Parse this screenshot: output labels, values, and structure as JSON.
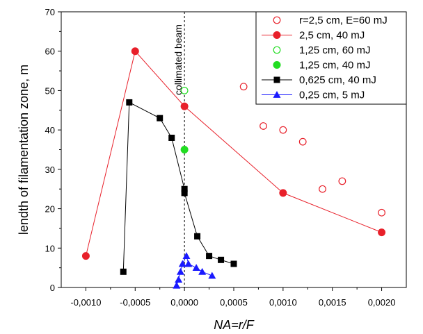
{
  "chart_data": {
    "type": "scatter",
    "xlabel": "NA=r/F",
    "ylabel": "lendth of filamentation zone, m",
    "xlim": [
      -0.00125,
      0.00225
    ],
    "ylim": [
      0,
      70
    ],
    "x_ticks": [
      -0.001,
      -0.0005,
      0,
      0.0005,
      0.001,
      0.0015,
      0.002
    ],
    "x_tick_labels": [
      "-0,0010",
      "-0,0005",
      "0,0000",
      "0,0005",
      "0,0010",
      "0,0015",
      "0,0020"
    ],
    "y_ticks": [
      0,
      10,
      20,
      30,
      40,
      50,
      60,
      70
    ],
    "y_tick_labels": [
      "0",
      "10",
      "20",
      "30",
      "40",
      "50",
      "60",
      "70"
    ],
    "annotation": "collimated beam",
    "reference_line_x": 0,
    "legend_position": "top-right",
    "series": [
      {
        "name": "r=2,5 cm, E=60 mJ",
        "marker": "circle-open",
        "color": "#e8202a",
        "line": false,
        "points": [
          [
            0.0006,
            51
          ],
          [
            0.0008,
            41
          ],
          [
            0.001,
            40
          ],
          [
            0.0012,
            37
          ],
          [
            0.0014,
            25
          ],
          [
            0.0016,
            27
          ],
          [
            0.002,
            19
          ]
        ]
      },
      {
        "name": "2,5 cm, 40 mJ",
        "marker": "circle-filled",
        "color": "#e8202a",
        "line": true,
        "points": [
          [
            -0.001,
            8
          ],
          [
            -0.0005,
            60
          ],
          [
            0,
            46
          ],
          [
            0.001,
            24
          ],
          [
            0.002,
            14
          ]
        ]
      },
      {
        "name": "1,25 cm, 60 mJ",
        "marker": "circle-open",
        "color": "#22dd22",
        "line": false,
        "points": [
          [
            0,
            50
          ]
        ]
      },
      {
        "name": "1,25 cm, 40 mJ",
        "marker": "circle-filled",
        "color": "#22dd22",
        "line": false,
        "points": [
          [
            0,
            35
          ]
        ]
      },
      {
        "name": "0,625 cm, 40 mJ",
        "marker": "square-filled",
        "color": "#000000",
        "line": true,
        "points": [
          [
            -0.00062,
            4
          ],
          [
            -0.00056,
            47
          ],
          [
            -0.00025,
            43
          ],
          [
            -0.00013,
            38
          ],
          [
            0,
            25
          ],
          [
            0,
            24
          ],
          [
            0.00013,
            13
          ],
          [
            0.00025,
            8
          ],
          [
            0.00037,
            7
          ],
          [
            0.0005,
            6
          ]
        ]
      },
      {
        "name": "0,25 cm, 5 mJ",
        "marker": "triangle-filled",
        "color": "#1a1aff",
        "line": true,
        "points": [
          [
            -8e-05,
            0.5
          ],
          [
            -6e-05,
            2
          ],
          [
            -4e-05,
            4
          ],
          [
            -2e-05,
            6
          ],
          [
            2e-05,
            8
          ],
          [
            4e-05,
            6
          ],
          [
            0.00012,
            5
          ],
          [
            0.00018,
            4
          ],
          [
            0.00028,
            3
          ]
        ]
      }
    ]
  }
}
